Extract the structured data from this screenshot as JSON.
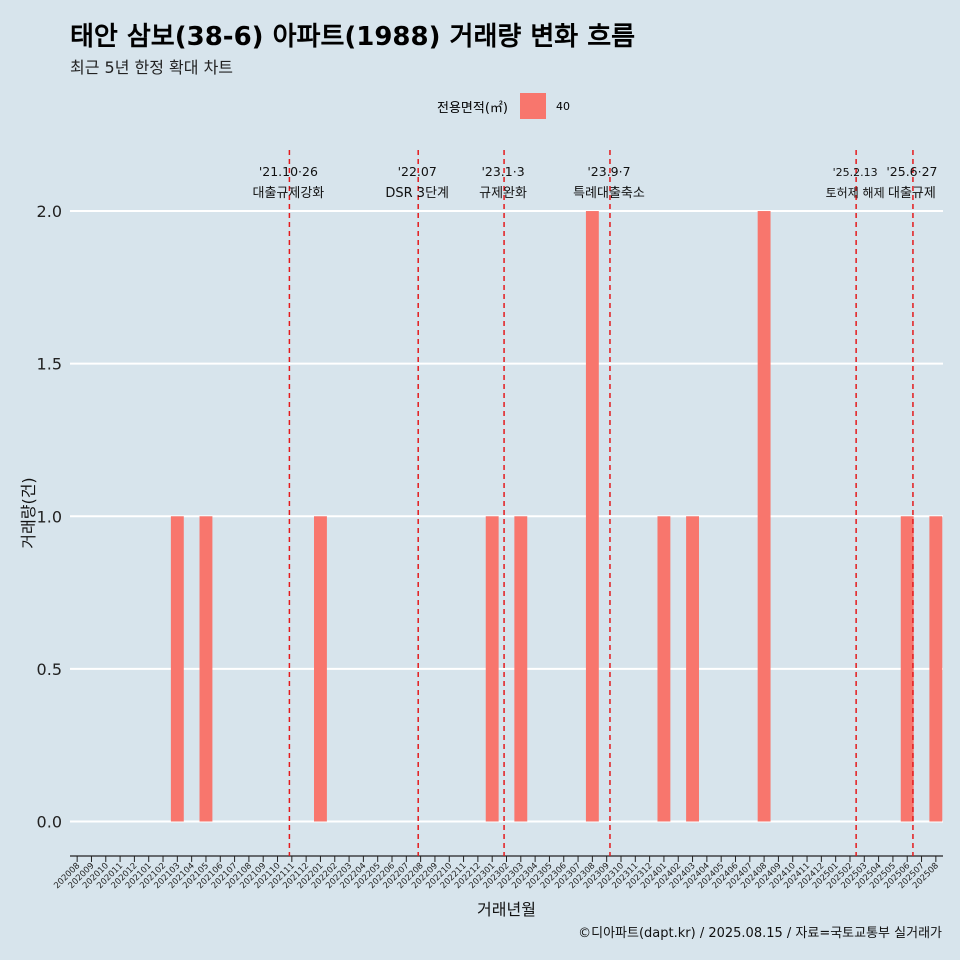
{
  "chart_data": {
    "type": "bar",
    "title": "태안 삼보(38-6) 아파트(1988) 거래량 변화 흐름",
    "subtitle": "최근 5년 한정 확대 차트",
    "xlabel": "거래년월",
    "ylabel": "거래량(건)",
    "ylim": [
      -0.1,
      2.2
    ],
    "yticks": [
      "0.0",
      "0.5",
      "1.0",
      "1.5",
      "2.0"
    ],
    "legend": {
      "title": "전용면적(㎡)",
      "position": "top",
      "entries": [
        {
          "name": "40",
          "color": "#f8766d"
        }
      ]
    },
    "categories": [
      "202008",
      "202009",
      "202010",
      "202011",
      "202012",
      "202101",
      "202102",
      "202103",
      "202104",
      "202105",
      "202106",
      "202107",
      "202108",
      "202109",
      "202110",
      "202111",
      "202112",
      "202201",
      "202202",
      "202203",
      "202204",
      "202205",
      "202206",
      "202207",
      "202208",
      "202209",
      "202210",
      "202211",
      "202212",
      "202301",
      "202302",
      "202303",
      "202304",
      "202305",
      "202306",
      "202307",
      "202308",
      "202309",
      "202310",
      "202311",
      "202312",
      "202401",
      "202402",
      "202403",
      "202404",
      "202405",
      "202406",
      "202407",
      "202408",
      "202409",
      "202410",
      "202411",
      "202412",
      "202501",
      "202502",
      "202503",
      "202504",
      "202505",
      "202506",
      "202507",
      "202508"
    ],
    "series": [
      {
        "name": "40",
        "values": [
          0,
          0,
          0,
          0,
          0,
          0,
          0,
          1,
          0,
          1,
          0,
          0,
          0,
          0,
          0,
          0,
          0,
          1,
          0,
          0,
          0,
          0,
          0,
          0,
          0,
          0,
          0,
          0,
          0,
          1,
          0,
          1,
          0,
          0,
          0,
          0,
          2,
          0,
          0,
          0,
          0,
          1,
          0,
          1,
          0,
          0,
          0,
          0,
          2,
          0,
          0,
          0,
          0,
          0,
          0,
          0,
          0,
          0,
          1,
          0,
          1
        ]
      }
    ],
    "annotations": [
      {
        "date": "2021-10-26",
        "pos": 14.83,
        "lines": [
          "'21.10·26",
          "대출규제강화"
        ]
      },
      {
        "date": "2022-07",
        "pos": 23.83,
        "lines": [
          "'22.07",
          "DSR 3단계"
        ]
      },
      {
        "date": "2023-01-03",
        "pos": 29.83,
        "lines": [
          "'23.1·3",
          "규제완화"
        ]
      },
      {
        "date": "2023-09-07",
        "pos": 37.23,
        "lines": [
          "'23.9·7",
          "특례대출축소"
        ]
      },
      {
        "date": "2025-02-13",
        "pos": 54.43,
        "lines": [
          "'25.2.13",
          "토허제 해제"
        ]
      },
      {
        "date": "2025-06-27",
        "pos": 58.4,
        "lines": [
          "'25.6·27",
          "대출규제"
        ]
      }
    ],
    "caption": "©디아파트(dapt.kr) / 2025.08.15 / 자료=국토교통부 실거래가",
    "colors": {
      "bar": "#f8766d",
      "vline": "#e41a1c",
      "background": "#d7e4ec",
      "grid": "#ffffff"
    }
  }
}
